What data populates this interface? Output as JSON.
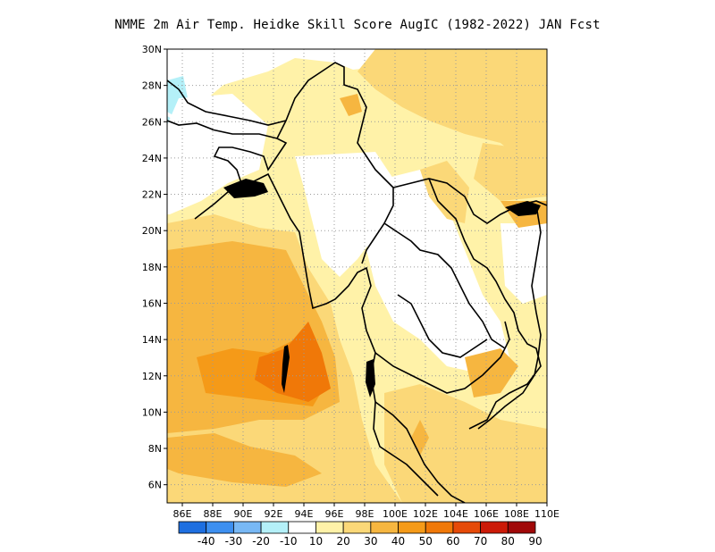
{
  "title": "NMME  2m Air Temp. Heidke Skill Score AugIC (1982-2022) JAN Fcst",
  "map": {
    "lat_ticks": [
      "30N",
      "28N",
      "26N",
      "24N",
      "22N",
      "20N",
      "18N",
      "16N",
      "14N",
      "12N",
      "10N",
      "8N",
      "6N"
    ],
    "lon_ticks": [
      "86E",
      "88E",
      "90E",
      "92E",
      "94E",
      "96E",
      "98E",
      "100E",
      "102E",
      "104E",
      "106E",
      "108E",
      "110E"
    ],
    "lon_range": [
      85,
      110
    ],
    "lat_range": [
      5,
      30
    ],
    "grid": "dotted"
  },
  "colorbar": {
    "labels": [
      "-40",
      "-30",
      "-20",
      "-10",
      "10",
      "20",
      "30",
      "40",
      "50",
      "60",
      "70",
      "80",
      "90"
    ],
    "colors": [
      "#1e6fe0",
      "#3d8ff0",
      "#78b8f5",
      "#b4f0f8",
      "#ffffff",
      "#fff2a8",
      "#fbd878",
      "#f6b640",
      "#f59a18",
      "#f07808",
      "#e64a08",
      "#cc1a08",
      "#a00808"
    ]
  }
}
